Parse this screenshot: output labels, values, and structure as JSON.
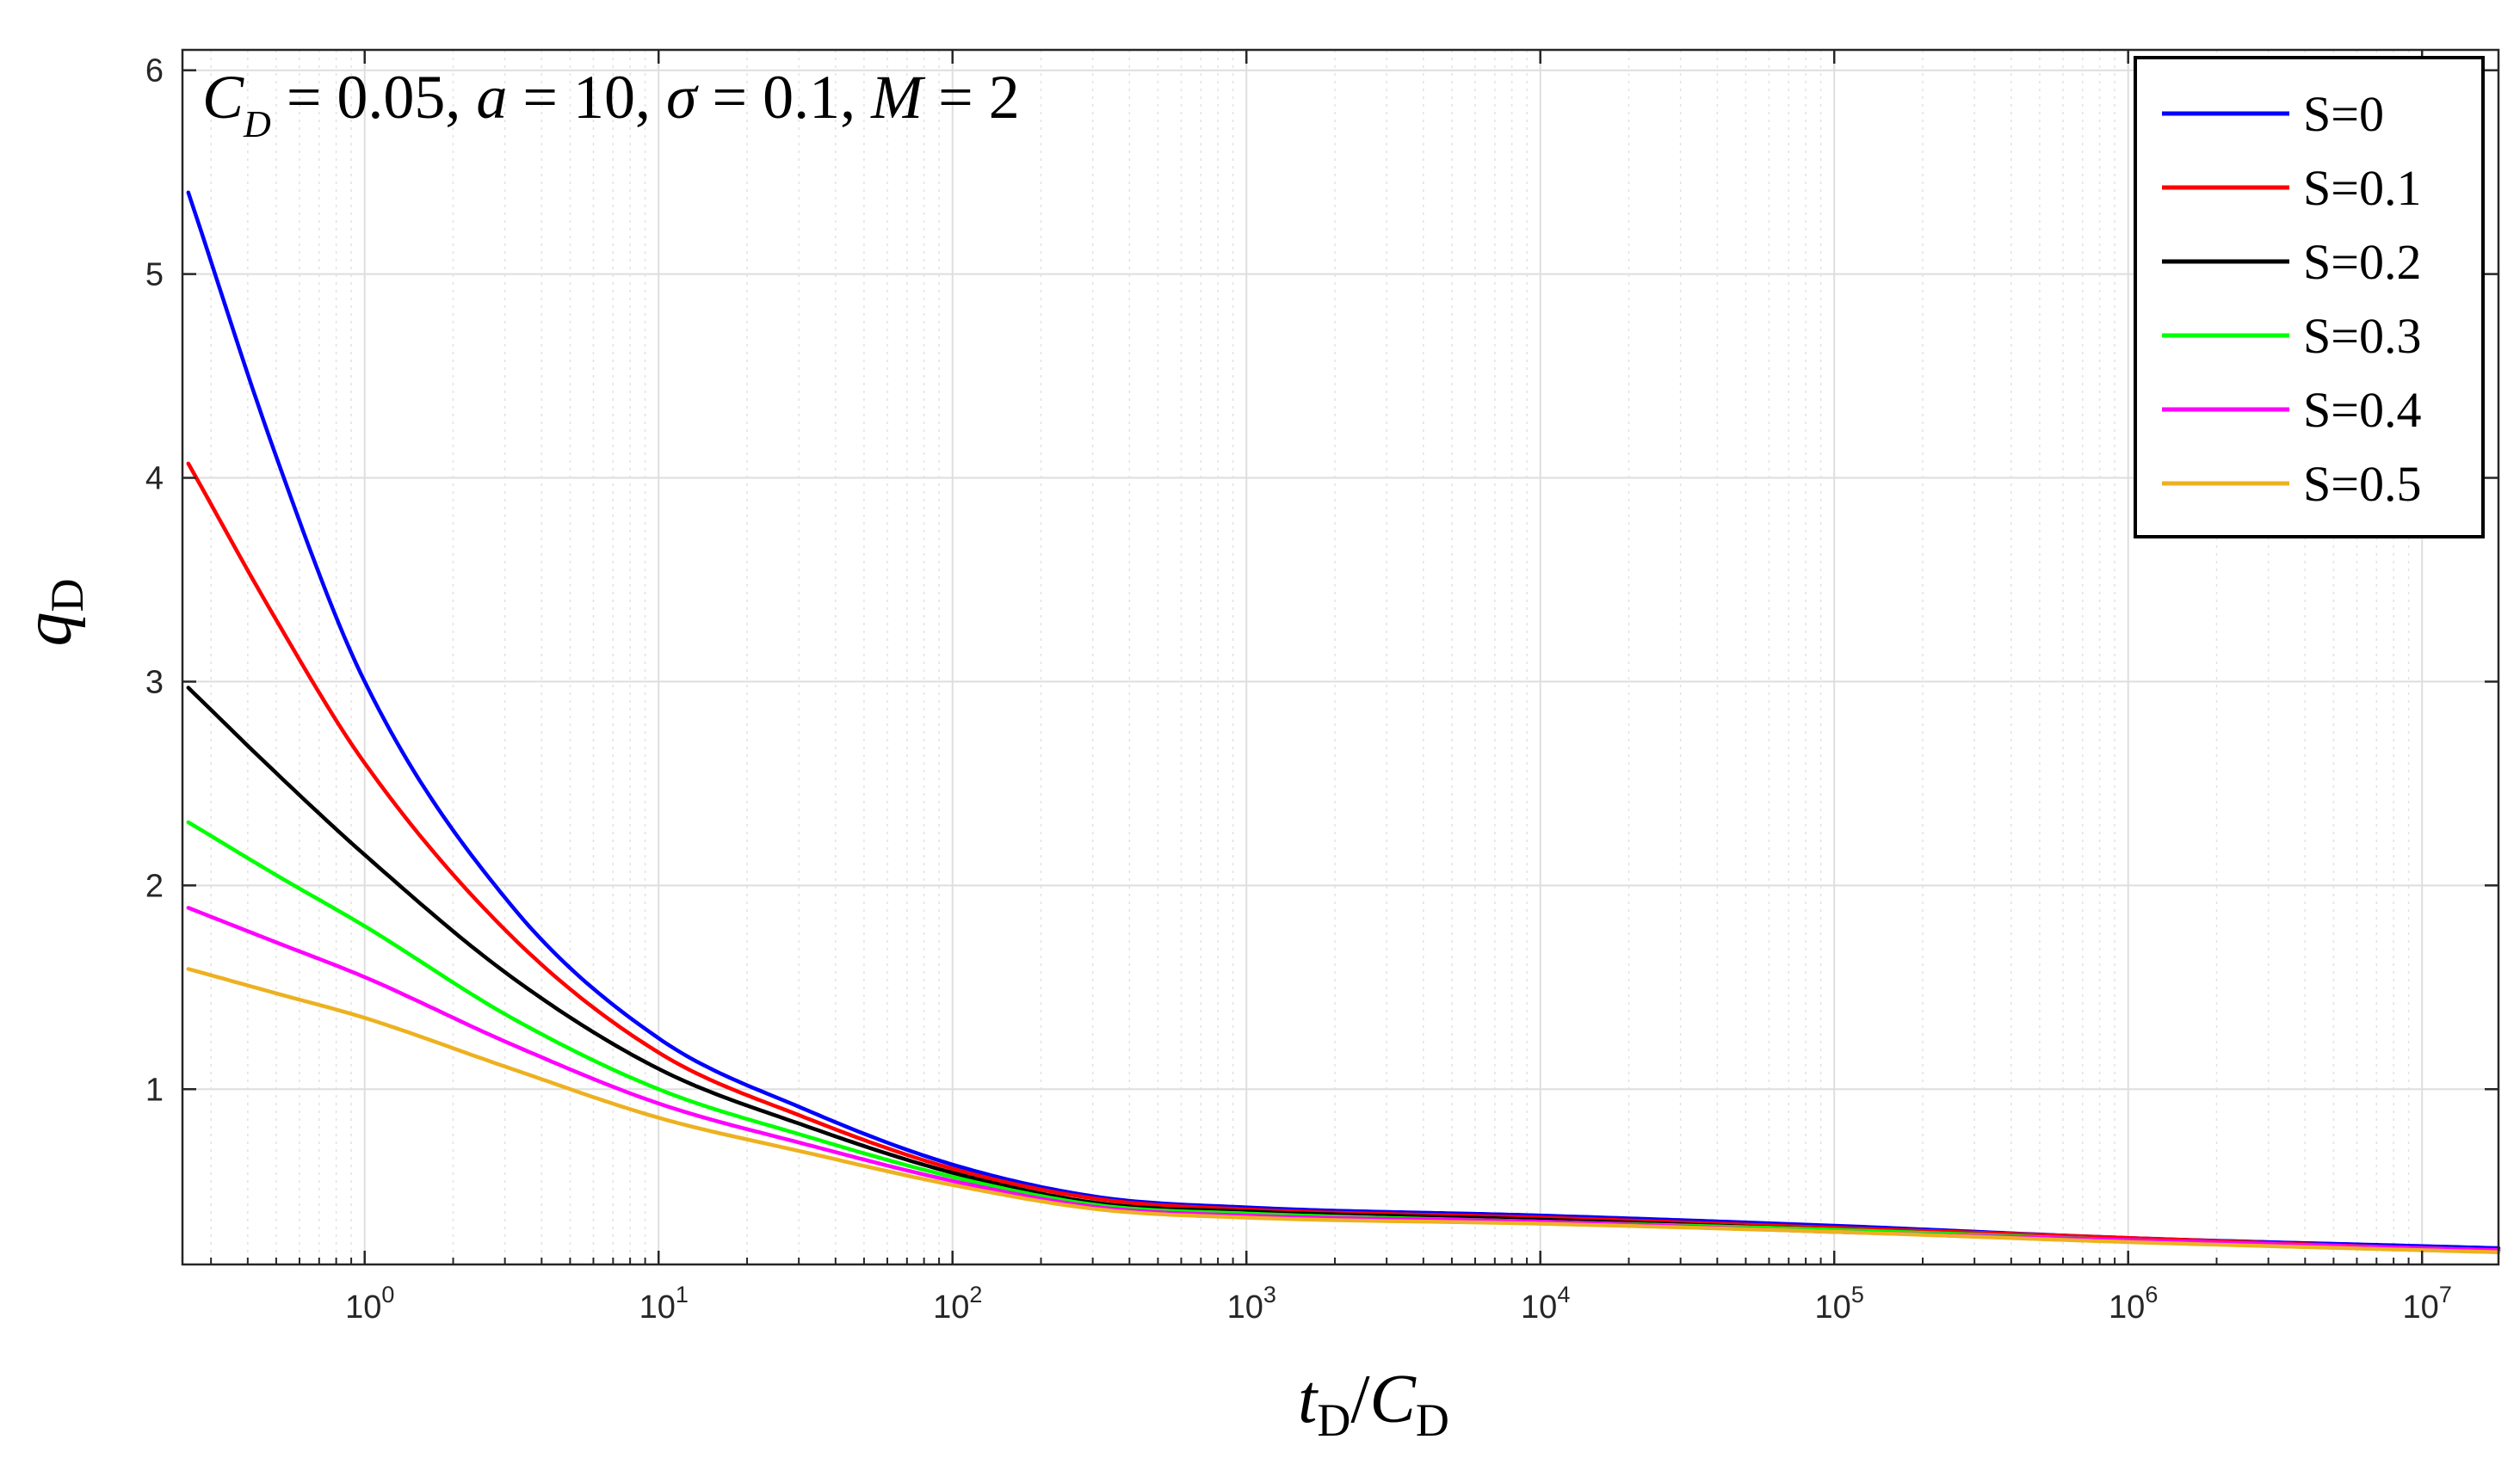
{
  "chart_data": {
    "type": "line",
    "title": "",
    "annotation": {
      "c_sym": "C",
      "c_sub": "D",
      "c_val": " = 0.05, ",
      "a_sym": "a",
      "a_val": " = 10, ",
      "sigma_sym": "σ",
      "sigma_val": " = 0.1, ",
      "m_sym": "M",
      "m_val": " = 2"
    },
    "xlabel": {
      "num": "t",
      "num_sub": "D",
      "sep": "/",
      "den": "C",
      "den_sub": "D"
    },
    "ylabel": {
      "base": "q",
      "sub": "D"
    },
    "xscale": "log",
    "xlim_log10": [
      -0.62,
      7.26
    ],
    "ylim": [
      0.14,
      6.1
    ],
    "grid": true,
    "legend_position": "top-right",
    "x_ticks": [
      {
        "base": "10",
        "exp": "0"
      },
      {
        "base": "10",
        "exp": "1"
      },
      {
        "base": "10",
        "exp": "2"
      },
      {
        "base": "10",
        "exp": "3"
      },
      {
        "base": "10",
        "exp": "4"
      },
      {
        "base": "10",
        "exp": "5"
      },
      {
        "base": "10",
        "exp": "6"
      },
      {
        "base": "10",
        "exp": "7"
      }
    ],
    "y_ticks": [
      "1",
      "2",
      "3",
      "4",
      "5",
      "6"
    ],
    "x_log10": [
      -0.6,
      -0.3,
      0,
      0.5,
      1,
      1.5,
      2,
      2.5,
      3,
      4,
      5,
      6,
      7,
      7.26
    ],
    "series": [
      {
        "name": "S=0",
        "color": "#0000ff",
        "values": [
          5.4,
          4.1,
          3.0,
          1.9,
          1.25,
          0.9,
          0.63,
          0.47,
          0.42,
          0.38,
          0.33,
          0.27,
          0.23,
          0.22
        ]
      },
      {
        "name": "S=0.1",
        "color": "#ff0000",
        "values": [
          4.07,
          3.3,
          2.6,
          1.75,
          1.18,
          0.86,
          0.61,
          0.46,
          0.41,
          0.37,
          0.32,
          0.27,
          0.22,
          0.21
        ]
      },
      {
        "name": "S=0.2",
        "color": "#000000",
        "values": [
          2.97,
          2.55,
          2.15,
          1.55,
          1.1,
          0.82,
          0.59,
          0.44,
          0.4,
          0.36,
          0.31,
          0.26,
          0.22,
          0.21
        ]
      },
      {
        "name": "S=0.3",
        "color": "#00ff00",
        "values": [
          2.31,
          2.05,
          1.8,
          1.35,
          1.0,
          0.77,
          0.57,
          0.43,
          0.39,
          0.35,
          0.31,
          0.26,
          0.22,
          0.21
        ]
      },
      {
        "name": "S=0.4",
        "color": "#ff00ff",
        "values": [
          1.89,
          1.72,
          1.55,
          1.22,
          0.93,
          0.73,
          0.55,
          0.42,
          0.38,
          0.35,
          0.3,
          0.26,
          0.22,
          0.21
        ]
      },
      {
        "name": "S=0.5",
        "color": "#edb120",
        "values": [
          1.59,
          1.47,
          1.35,
          1.1,
          0.86,
          0.69,
          0.53,
          0.41,
          0.37,
          0.34,
          0.3,
          0.25,
          0.21,
          0.2
        ]
      }
    ]
  }
}
